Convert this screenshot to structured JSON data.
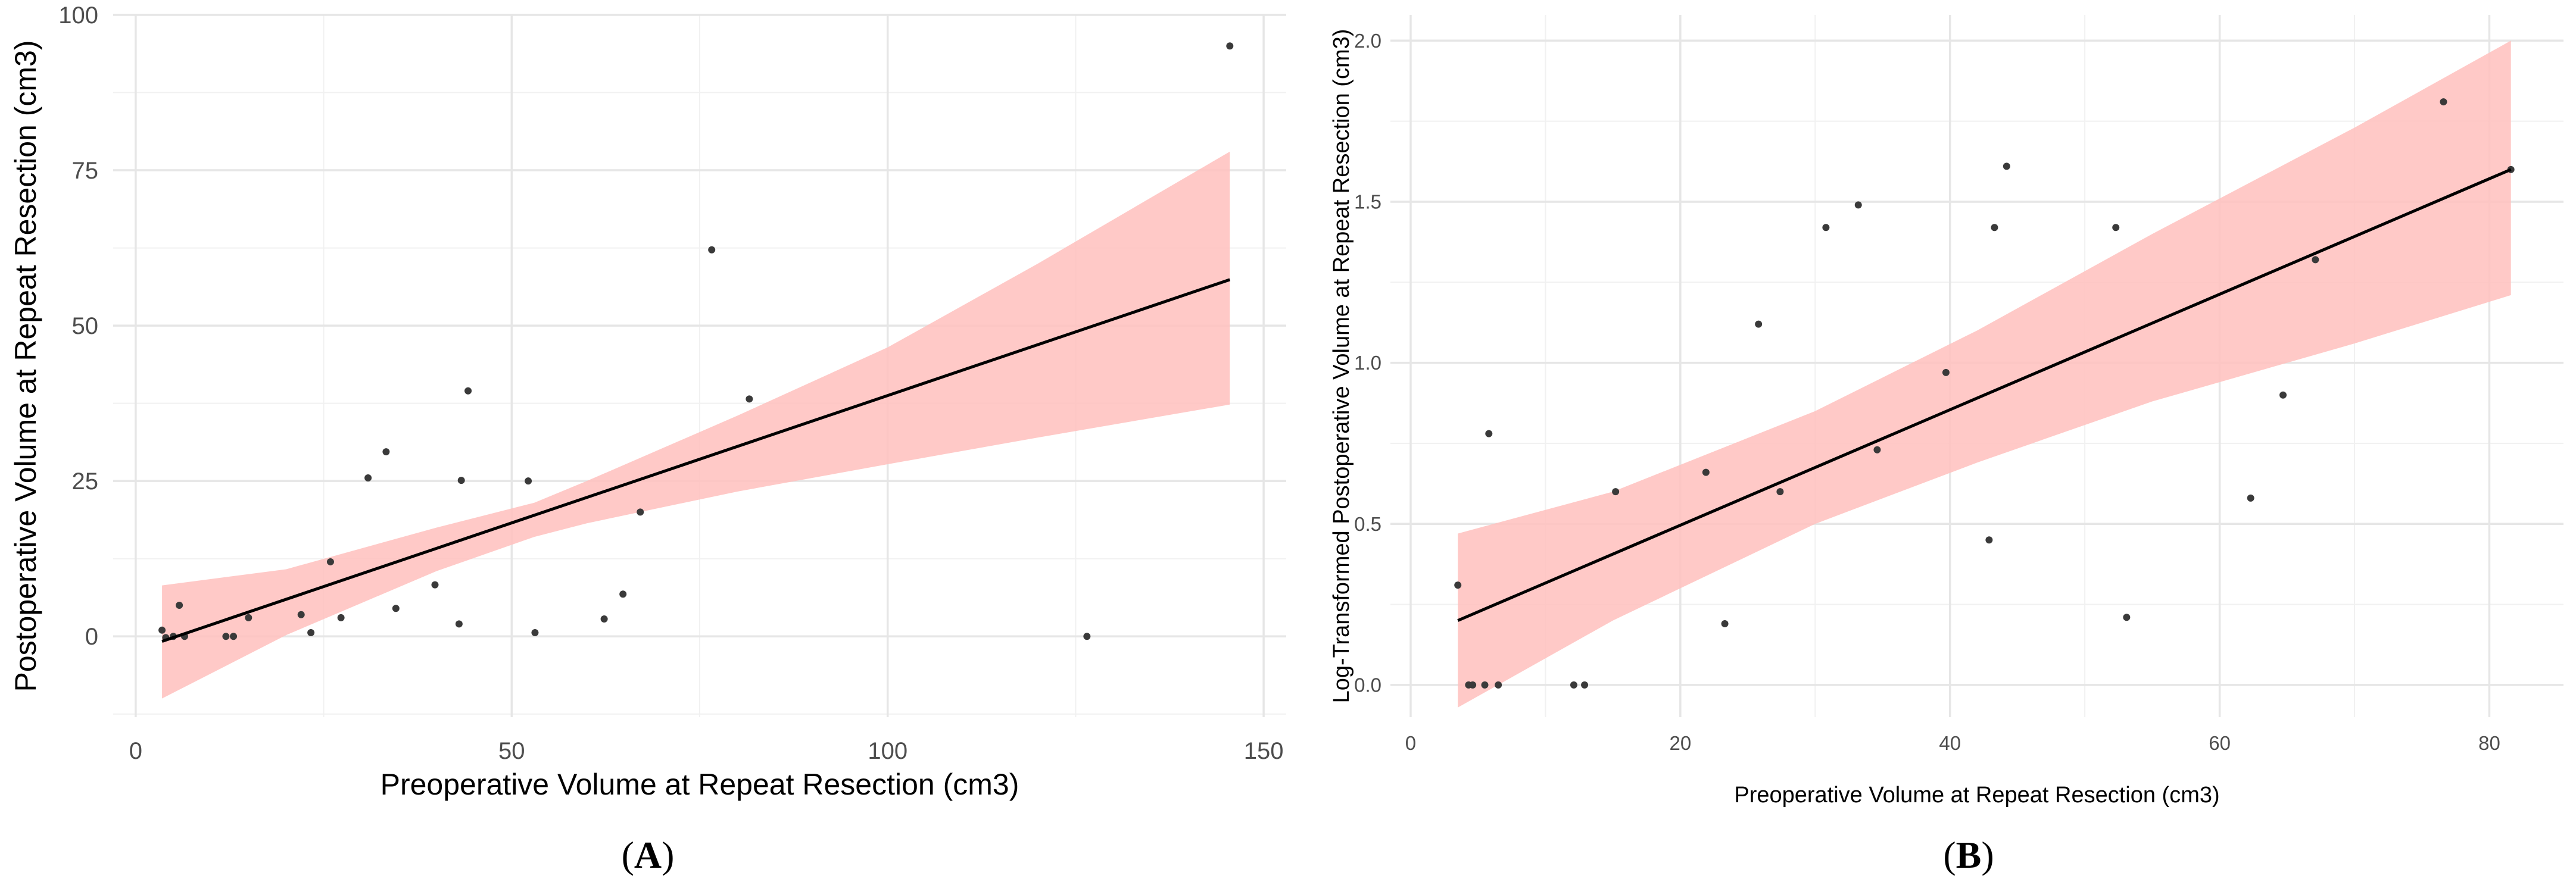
{
  "chart_data": [
    {
      "type": "scatter",
      "panel_label": "(A)",
      "panel_letter": "A",
      "xlabel": "Preoperative Volume at Repeat Resection (cm3)",
      "ylabel": "Postoperative Volume at Repeat Resection (cm3)",
      "xlim": [
        -3,
        153
      ],
      "ylim": [
        -13,
        100
      ],
      "x_ticks": [
        0,
        50,
        100,
        150
      ],
      "y_ticks": [
        0,
        25,
        50,
        75,
        100
      ],
      "grid": true,
      "points": {
        "x": [
          3.5,
          4,
          5,
          5.8,
          6.5,
          12,
          13,
          15,
          22,
          23.3,
          25.9,
          27.3,
          30.9,
          33.3,
          34.6,
          39.8,
          43,
          43.3,
          44.2,
          52.2,
          53.1,
          62.3,
          64.8,
          67.1,
          76.6,
          81.6,
          126.5,
          145.5
        ],
        "y": [
          1,
          -0.2,
          0,
          5,
          0,
          0,
          0,
          3,
          3.5,
          0.6,
          12,
          3,
          25.5,
          29.7,
          4.5,
          8.3,
          2,
          25.1,
          39.5,
          25,
          0.6,
          2.8,
          6.8,
          20,
          62.2,
          38.2,
          0,
          95
        ]
      },
      "fit_line": {
        "x": [
          3.5,
          145.5
        ],
        "y": [
          -0.8,
          57.4
        ]
      },
      "ci_band": {
        "x": [
          3.5,
          20,
          40,
          53,
          60,
          80,
          100,
          120,
          145.5
        ],
        "lower": [
          -10,
          0.2,
          10.5,
          16,
          18.2,
          23.3,
          27.7,
          32,
          37.3
        ],
        "upper": [
          8.2,
          10.8,
          17.5,
          21.5,
          25,
          35.5,
          46.5,
          60,
          78
        ]
      },
      "colors": {
        "band": "#ffbfbd",
        "line": "#000000",
        "point": "#3a3a3a"
      }
    },
    {
      "type": "scatter",
      "panel_label": "(B)",
      "panel_letter": "B",
      "xlabel": "Preoperative Volume at Repeat Resection (cm3)",
      "ylabel": "Log-Transformed Postoperative Volume at Repeat Resection (cm3)",
      "xlim": [
        -1.5,
        85.5
      ],
      "ylim": [
        -0.1,
        2.08
      ],
      "x_ticks": [
        0,
        20,
        40,
        60,
        80
      ],
      "y_ticks": [
        0.0,
        0.5,
        1.0,
        1.5,
        2.0
      ],
      "y_tick_labels": [
        "0.0",
        "0.5",
        "1.0",
        "1.5",
        "2.0"
      ],
      "grid": true,
      "points": {
        "x": [
          3.5,
          4.3,
          4.6,
          5.5,
          5.8,
          6.5,
          12.1,
          12.9,
          15.2,
          21.9,
          23.3,
          25.8,
          27.4,
          30.8,
          33.2,
          34.6,
          39.7,
          42.9,
          43.3,
          44.2,
          52.3,
          53.1,
          62.3,
          64.7,
          67.1,
          76.6,
          81.6
        ],
        "y": [
          0.31,
          0,
          0,
          0,
          0.78,
          0,
          0,
          0,
          0.6,
          0.66,
          0.19,
          1.12,
          0.6,
          1.42,
          1.49,
          0.73,
          0.97,
          0.45,
          1.42,
          1.61,
          1.42,
          0.21,
          0.58,
          0.9,
          1.32,
          1.81,
          1.6
        ]
      },
      "fit_line": {
        "x": [
          3.5,
          81.6
        ],
        "y": [
          0.2,
          1.6
        ]
      },
      "ci_band": {
        "x": [
          3.5,
          15,
          30,
          42,
          55,
          70,
          81.6
        ],
        "lower": [
          -0.07,
          0.2,
          0.5,
          0.69,
          0.88,
          1.06,
          1.21
        ],
        "upper": [
          0.47,
          0.6,
          0.85,
          1.1,
          1.4,
          1.73,
          2.0
        ]
      },
      "colors": {
        "band": "#ffbfbd",
        "line": "#000000",
        "point": "#3a3a3a"
      }
    }
  ]
}
